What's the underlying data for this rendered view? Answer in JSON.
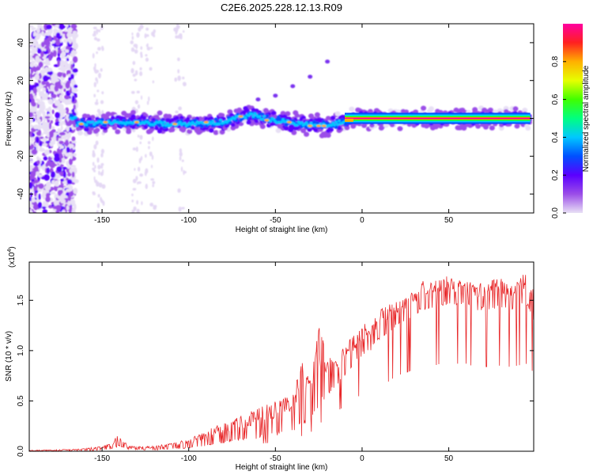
{
  "title": "C2E6.2025.228.12.13.R09",
  "colors": {
    "snr_line": "#e8282a",
    "background": "#ffffff"
  },
  "chart_data": [
    {
      "type": "heatmap",
      "title": "C2E6.2025.228.12.13.R09",
      "xlabel": "Height of straight line (km)",
      "ylabel": "Frequency (Hz)",
      "xlim": [
        -192,
        99
      ],
      "ylim": [
        -50,
        50
      ],
      "x_ticks": [
        -150,
        -100,
        -50,
        0,
        50
      ],
      "y_ticks": [
        -40,
        -20,
        0,
        20,
        40
      ],
      "colorbar": {
        "label": "Normalized spectral amplitude",
        "range": [
          0.0,
          1.0
        ],
        "ticks": [
          0.0,
          0.2,
          0.4,
          0.6,
          0.8
        ],
        "colormap": [
          "#e8e0f5",
          "#9b4de8",
          "#5a00ff",
          "#0050ff",
          "#00c8ff",
          "#00ff80",
          "#40ff00",
          "#e6ff00",
          "#ffb000",
          "#ff2020",
          "#ff00a0"
        ]
      },
      "features": {
        "noise_region_x": [
          -192,
          -165
        ],
        "band_center_points": [
          {
            "x": -165,
            "y": -3
          },
          {
            "x": -140,
            "y": -2
          },
          {
            "x": -110,
            "y": -3
          },
          {
            "x": -80,
            "y": -2
          },
          {
            "x": -65,
            "y": 2
          },
          {
            "x": -50,
            "y": -1
          },
          {
            "x": -35,
            "y": -3
          },
          {
            "x": -20,
            "y": -4
          },
          {
            "x": -12,
            "y": -2
          },
          {
            "x": -5,
            "y": 0
          },
          {
            "x": 20,
            "y": 0
          },
          {
            "x": 60,
            "y": 0
          },
          {
            "x": 97,
            "y": 0
          }
        ],
        "strong_line_x": [
          -10,
          97
        ],
        "strong_line_y": 0
      }
    },
    {
      "type": "line",
      "xlabel": "Height of straight line (km)",
      "ylabel": "SNR (10 * v/v)",
      "y_scale_label": "(x10",
      "y_scale_exp": "4",
      "xlim": [
        -192,
        99
      ],
      "ylim": [
        0,
        1.88
      ],
      "x_ticks": [
        -150,
        -100,
        -50,
        0,
        50
      ],
      "y_ticks": [
        0.0,
        0.5,
        1.0,
        1.5
      ],
      "series": [
        {
          "envelope_x": [
            -192,
            -165,
            -150,
            -145,
            -140,
            -135,
            -120,
            -100,
            -90,
            -80,
            -70,
            -60,
            -50,
            -40,
            -35,
            -30,
            -25,
            -20,
            -15,
            -10,
            -5,
            0,
            5,
            10,
            15,
            20,
            25,
            30,
            35,
            40,
            45,
            50,
            55,
            60,
            65,
            70,
            75,
            80,
            85,
            90,
            95,
            99
          ],
          "envelope_y": [
            0.01,
            0.02,
            0.05,
            0.08,
            0.18,
            0.05,
            0.05,
            0.12,
            0.2,
            0.3,
            0.35,
            0.45,
            0.5,
            0.58,
            0.9,
            0.7,
            1.25,
            0.95,
            0.9,
            1.05,
            1.15,
            1.25,
            1.3,
            1.4,
            1.45,
            1.5,
            1.52,
            1.6,
            1.7,
            1.68,
            1.72,
            1.75,
            1.7,
            1.72,
            1.65,
            1.68,
            1.7,
            1.72,
            1.65,
            1.75,
            1.8,
            1.6
          ],
          "floor_y": [
            0.0,
            0.0,
            0.01,
            0.02,
            0.05,
            0.02,
            0.01,
            0.03,
            0.05,
            0.08,
            0.1,
            0.12,
            0.15,
            0.2,
            0.25,
            0.3,
            0.45,
            0.55,
            0.65,
            0.75,
            0.85,
            0.95,
            1.0,
            1.1,
            1.15,
            1.25,
            1.3,
            1.35,
            1.4,
            1.4,
            1.45,
            1.45,
            1.45,
            1.45,
            1.4,
            1.4,
            1.4,
            1.42,
            1.4,
            1.42,
            1.45,
            1.3
          ]
        }
      ]
    }
  ]
}
